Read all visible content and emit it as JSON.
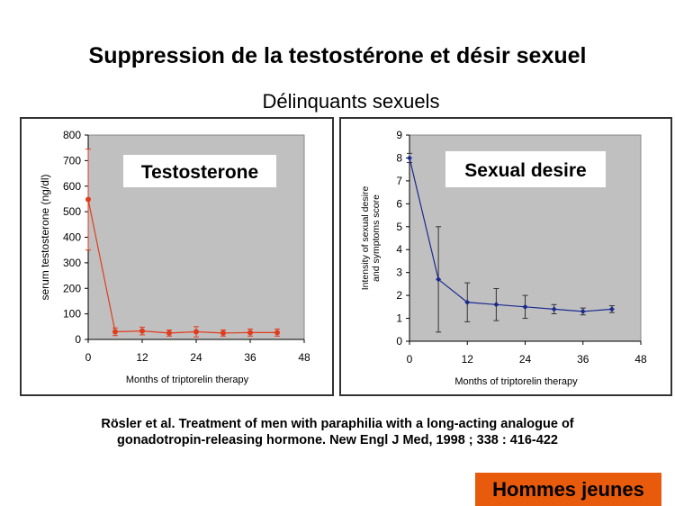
{
  "slide": {
    "title": "Suppression de la testostérone et désir sexuel",
    "subtitle": "Délinquants sexuels",
    "reference_line1": "Rösler et al. Treatment of men with paraphilia with a long-acting analogue of",
    "reference_line2": "gonadotropin-releasing hormone. New Engl J Med, 1998 ; 338 : 416-422",
    "badge": "Hommes jeunes",
    "badge_color": "#e85a0c"
  },
  "chart_data": [
    {
      "type": "line",
      "title": "Testosterone",
      "xlabel": "Months of triptorelin therapy",
      "ylabel": "serum testosterone (ng/dl)",
      "xlim": [
        0,
        48
      ],
      "ylim": [
        0,
        800
      ],
      "xticks": [
        0,
        12,
        24,
        36,
        48
      ],
      "yticks": [
        0,
        100,
        200,
        300,
        400,
        500,
        600,
        700,
        800
      ],
      "grid": false,
      "plot_background": "#c0c0c0",
      "color": "#e03c1e",
      "x": [
        0,
        6,
        12,
        18,
        24,
        30,
        36,
        42
      ],
      "y": [
        548,
        30,
        33,
        25,
        30,
        25,
        27,
        27
      ],
      "error_low": [
        350,
        15,
        18,
        13,
        10,
        13,
        13,
        13
      ],
      "error_high": [
        745,
        45,
        48,
        37,
        50,
        37,
        41,
        41
      ]
    },
    {
      "type": "line",
      "title": "Sexual desire",
      "xlabel": "Months of triptorelin therapy",
      "ylabel": "Intensity of sexual desire and symptoms score",
      "ylabel_lines": [
        "Intensity of sexual desire",
        "and symptoms score"
      ],
      "xlim": [
        0,
        48
      ],
      "ylim": [
        0,
        9
      ],
      "xticks": [
        0,
        12,
        24,
        36,
        48
      ],
      "yticks": [
        0,
        1,
        2,
        3,
        4,
        5,
        6,
        7,
        8,
        9
      ],
      "grid": false,
      "plot_background": "#c0c0c0",
      "color": "#1a2a8c",
      "x": [
        0,
        6,
        12,
        18,
        24,
        30,
        36,
        42
      ],
      "y": [
        8.0,
        2.7,
        1.7,
        1.6,
        1.5,
        1.4,
        1.3,
        1.4
      ],
      "error_low": [
        7.8,
        0.4,
        0.85,
        0.9,
        1.0,
        1.2,
        1.15,
        1.25
      ],
      "error_high": [
        8.2,
        5.0,
        2.55,
        2.3,
        2.0,
        1.6,
        1.45,
        1.55
      ]
    }
  ]
}
